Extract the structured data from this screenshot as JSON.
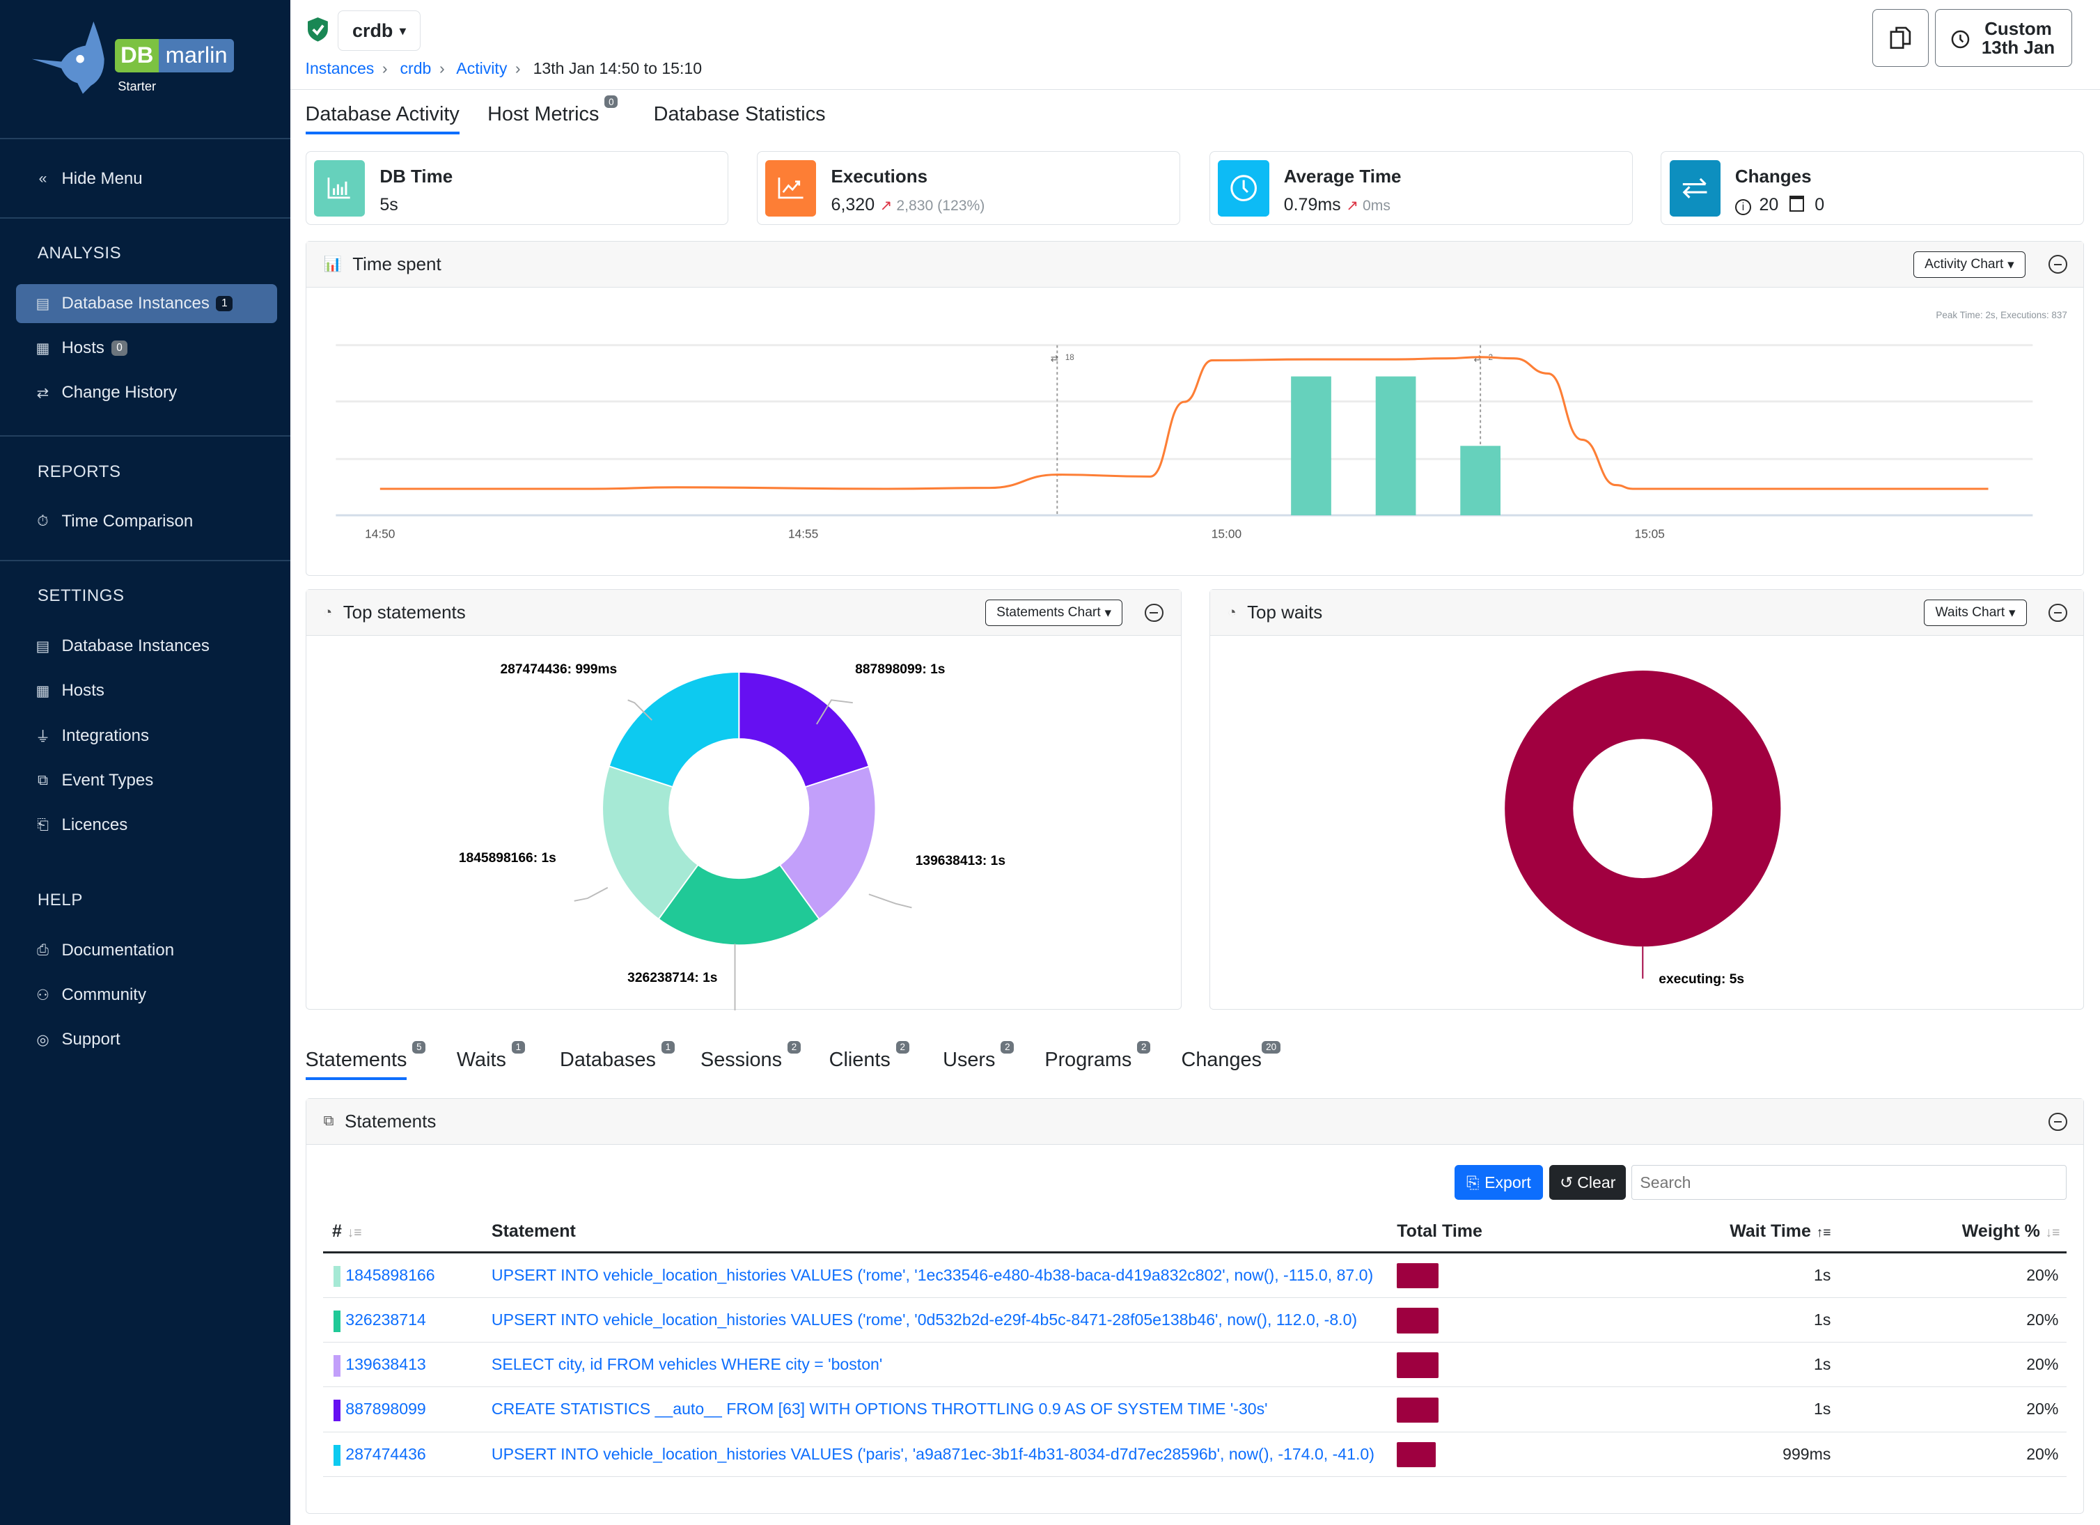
{
  "app": {
    "logo_db": "DB",
    "logo_name": "marlin",
    "edition": "Starter"
  },
  "sidebar": {
    "hide_menu": "Hide Menu",
    "sections": [
      {
        "title": "ANALYSIS",
        "items": [
          {
            "label": "Database Instances",
            "icon": "database-icon",
            "badge": "1",
            "active": true
          },
          {
            "label": "Hosts",
            "icon": "server-icon",
            "badge": "0"
          },
          {
            "label": "Change History",
            "icon": "arrows-exchange-icon"
          }
        ]
      },
      {
        "title": "REPORTS",
        "items": [
          {
            "label": "Time Comparison",
            "icon": "stopwatch-icon"
          }
        ]
      },
      {
        "title": "SETTINGS",
        "items": [
          {
            "label": "Database Instances",
            "icon": "database-icon"
          },
          {
            "label": "Hosts",
            "icon": "server-icon"
          },
          {
            "label": "Integrations",
            "icon": "plug-icon"
          },
          {
            "label": "Event Types",
            "icon": "event-types-icon"
          },
          {
            "label": "Licences",
            "icon": "licence-icon"
          }
        ]
      },
      {
        "title": "HELP",
        "items": [
          {
            "label": "Documentation",
            "icon": "documentation-icon"
          },
          {
            "label": "Community",
            "icon": "people-icon"
          },
          {
            "label": "Support",
            "icon": "lifebuoy-icon"
          }
        ]
      }
    ]
  },
  "header": {
    "instance": "crdb",
    "status_icon": "shield-check-icon",
    "status_color": "#198754",
    "breadcrumb": [
      "Instances",
      "crdb",
      "Activity"
    ],
    "breadcrumb_current": "13th Jan 14:50 to 15:10",
    "time_button_line1": "Custom",
    "time_button_line2": "13th Jan"
  },
  "tabs": [
    {
      "label": "Database Activity",
      "active": true
    },
    {
      "label": "Host Metrics",
      "badge": "0"
    },
    {
      "label": "Database Statistics"
    }
  ],
  "cards": [
    {
      "title": "DB Time",
      "value": "5s",
      "color": "#66d1bc",
      "icon": "bar-chart-icon"
    },
    {
      "title": "Executions",
      "value": "6,320",
      "delta": "2,830",
      "delta_pct": "(123%)",
      "color": "#fd7e35",
      "icon": "trend-chart-icon"
    },
    {
      "title": "Average Time",
      "value": "0.79ms",
      "delta": "0ms",
      "color": "#0dbbf5",
      "icon": "clock-icon"
    },
    {
      "title": "Changes",
      "info_count": "20",
      "calendar_count": "0",
      "color": "#0d8fbf",
      "icon": "arrows-exchange-icon"
    }
  ],
  "time_spent": {
    "title": "Time spent",
    "dropdown": "Activity Chart",
    "peak_text": "Peak Time: 2s, Executions: 837"
  },
  "chart_data": {
    "type": "bar+line",
    "x_ticks": [
      "14:50",
      "14:55",
      "15:00",
      "15:05"
    ],
    "xlim": [
      "14:50:00",
      "15:10:00"
    ],
    "bars": {
      "unit": "s",
      "x": [
        "15:01:00",
        "15:02:00",
        "15:03:00"
      ],
      "values": [
        2,
        2,
        1
      ],
      "ylim": [
        0,
        2.45
      ],
      "color": "#66d1bc"
    },
    "line": {
      "unit": "executions",
      "color": "#fd7e35",
      "ylim": [
        0,
        900
      ],
      "x": [
        "14:50:00",
        "14:52:30",
        "14:53:30",
        "14:56:00",
        "14:57:12",
        "14:58:00",
        "14:59:06",
        "14:59:30",
        "14:59:50",
        "15:01:00",
        "15:02:00",
        "15:02:36",
        "15:03:00",
        "15:03:24",
        "15:03:48",
        "15:04:12",
        "15:04:36",
        "15:04:48",
        "15:07:00",
        "15:09:00"
      ],
      "values": [
        140,
        140,
        148,
        140,
        145,
        215,
        205,
        600,
        820,
        825,
        825,
        830,
        837,
        830,
        750,
        400,
        160,
        140,
        140,
        140
      ]
    },
    "change_markers": [
      {
        "x": "14:58:00",
        "label": "18"
      },
      {
        "x": "15:03:00",
        "label": "2"
      }
    ],
    "grid": true
  },
  "top_statements": {
    "title": "Top statements",
    "dropdown": "Statements Chart",
    "chart": {
      "type": "pie",
      "slices": [
        {
          "label": "887898099: 1s",
          "value": 1,
          "color": "#6610f2"
        },
        {
          "label": "139638413: 1s",
          "value": 1,
          "color": "#c29ffa"
        },
        {
          "label": "326238714: 1s",
          "value": 1,
          "color": "#20c997"
        },
        {
          "label": "1845898166: 1s",
          "value": 1,
          "color": "#a6e9d5"
        },
        {
          "label": "287474436: 999ms",
          "value": 0.999,
          "color": "#0dcaf0"
        }
      ]
    }
  },
  "top_waits": {
    "title": "Top waits",
    "dropdown": "Waits Chart",
    "chart": {
      "type": "pie",
      "slices": [
        {
          "label": "executing: 5s",
          "value": 5,
          "color": "#a10040"
        }
      ]
    }
  },
  "bottom_tabs": [
    {
      "label": "Statements",
      "badge": "5",
      "active": true
    },
    {
      "label": "Waits",
      "badge": "1"
    },
    {
      "label": "Databases",
      "badge": "1"
    },
    {
      "label": "Sessions",
      "badge": "2"
    },
    {
      "label": "Clients",
      "badge": "2"
    },
    {
      "label": "Users",
      "badge": "2"
    },
    {
      "label": "Programs",
      "badge": "2"
    },
    {
      "label": "Changes",
      "badge": "20"
    }
  ],
  "statements": {
    "title": "Statements",
    "export": "Export",
    "clear": "Clear",
    "search_placeholder": "Search",
    "columns": [
      "#",
      "Statement",
      "Total Time",
      "Wait Time",
      "Weight %"
    ],
    "rows": [
      {
        "id": "1845898166",
        "color": "#a6e9d5",
        "statement": "UPSERT INTO vehicle_location_histories VALUES ('rome', '1ec33546-e480-4b38-baca-d419a832c802', now(), -115.0, 87.0)",
        "total_fraction": 1,
        "wait": "1s",
        "weight": "20%"
      },
      {
        "id": "326238714",
        "color": "#20c997",
        "statement": "UPSERT INTO vehicle_location_histories VALUES ('rome', '0d532b2d-e29f-4b5c-8471-28f05e138b46', now(), 112.0, -8.0)",
        "total_fraction": 1,
        "wait": "1s",
        "weight": "20%"
      },
      {
        "id": "139638413",
        "color": "#c29ffa",
        "statement": "SELECT city, id FROM vehicles WHERE city = 'boston'",
        "total_fraction": 1,
        "wait": "1s",
        "weight": "20%"
      },
      {
        "id": "887898099",
        "color": "#6610f2",
        "statement": "CREATE STATISTICS __auto__ FROM [63] WITH OPTIONS THROTTLING 0.9 AS OF SYSTEM TIME '-30s'",
        "total_fraction": 1,
        "wait": "1s",
        "weight": "20%"
      },
      {
        "id": "287474436",
        "color": "#0dcaf0",
        "statement": "UPSERT INTO vehicle_location_histories VALUES ('paris', 'a9a871ec-3b1f-4b31-8034-d7d7ec28596b', now(), -174.0, -41.0)",
        "total_fraction": 0.999,
        "wait": "999ms",
        "weight": "20%"
      }
    ]
  }
}
